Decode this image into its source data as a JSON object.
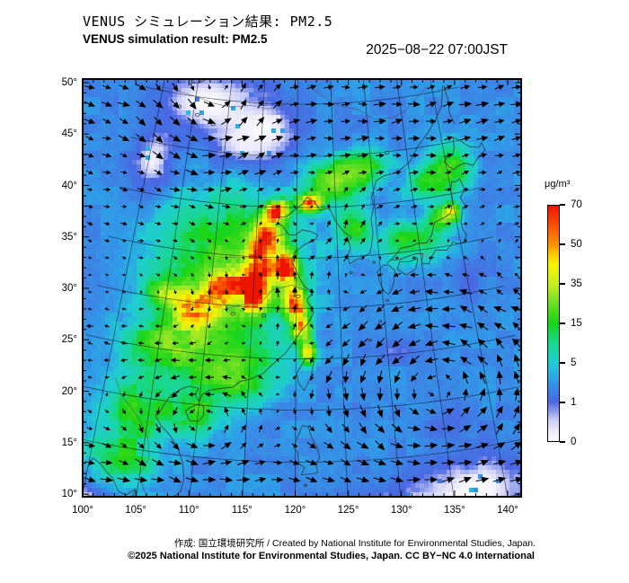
{
  "header": {
    "title_jp": "VENUS シミュレーション結果: PM2.5",
    "title_en": "VENUS simulation result: PM2.5",
    "timestamp": "2025−08−22 07:00JST"
  },
  "footer": {
    "credit": "作成: 国立環境研究所 / Created by National Institute for Environmental Studies, Japan.",
    "license": "©2025 National Institute for Environmental Studies, Japan. CC BY−NC 4.0 International"
  },
  "colorbar": {
    "unit": "μg/m³",
    "levels": [
      0,
      1,
      5,
      15,
      35,
      50,
      70
    ],
    "stops": [
      [
        0.0,
        "#ffffff"
      ],
      [
        0.045,
        "#eceafb"
      ],
      [
        0.09,
        "#c9cdf6"
      ],
      [
        0.167,
        "#4a66e2"
      ],
      [
        0.26,
        "#2f9fe8"
      ],
      [
        0.333,
        "#1fcdd2"
      ],
      [
        0.42,
        "#19d88a"
      ],
      [
        0.5,
        "#17d417"
      ],
      [
        0.6,
        "#7ce224"
      ],
      [
        0.667,
        "#c8ee1e"
      ],
      [
        0.75,
        "#f8f400"
      ],
      [
        0.8,
        "#fdc500"
      ],
      [
        0.833,
        "#ff9400"
      ],
      [
        0.9,
        "#fb5c00"
      ],
      [
        1.0,
        "#ee1500"
      ]
    ]
  },
  "axes": {
    "x_labels": [
      "100°",
      "105°",
      "110°",
      "115°",
      "120°",
      "125°",
      "130°",
      "135°",
      "140°"
    ],
    "y_labels": [
      "50°",
      "45°",
      "40°",
      "35°",
      "30°",
      "25°",
      "20°",
      "15°",
      "10°"
    ]
  },
  "chart_data": {
    "type": "heatmap",
    "title": "VENUS simulation result: PM2.5",
    "time": "2025-08-22 07:00 JST",
    "unit": "μg/m³",
    "projection": "lambert-conformal-like, East Asia",
    "lon_range": [
      100,
      141.3
    ],
    "lat_range": [
      9.7,
      52.5
    ],
    "levels": [
      0,
      1,
      5,
      15,
      35,
      50,
      70
    ],
    "background_level": 2.4,
    "pm25_blobs": [
      [
        117.6,
        39.6,
        1.3,
        0.9,
        62
      ],
      [
        121.7,
        40.4,
        1.4,
        0.8,
        55
      ],
      [
        116.3,
        36.8,
        1.6,
        1.8,
        68
      ],
      [
        115.2,
        32.6,
        1.6,
        2.6,
        72
      ],
      [
        118.6,
        33.8,
        1.3,
        1.6,
        58
      ],
      [
        119.6,
        30.6,
        1.1,
        1.6,
        62
      ],
      [
        120.6,
        28.3,
        0.9,
        1.4,
        52
      ],
      [
        121.3,
        25.8,
        0.7,
        1.1,
        35
      ],
      [
        111.5,
        31.5,
        2.6,
        2.2,
        40
      ],
      [
        108.3,
        29.6,
        2.2,
        1.8,
        34
      ],
      [
        104.8,
        30.6,
        1.6,
        1.1,
        26
      ],
      [
        112.0,
        34.0,
        7.0,
        5.5,
        18
      ],
      [
        106.5,
        25.5,
        4.0,
        3.0,
        18
      ],
      [
        113.5,
        23.0,
        3.5,
        2.2,
        20
      ],
      [
        109.5,
        19.5,
        2.5,
        2.0,
        14
      ],
      [
        104.0,
        19.0,
        3.0,
        3.0,
        12
      ],
      [
        103.0,
        14.0,
        3.0,
        2.5,
        10
      ],
      [
        127.0,
        38.0,
        2.0,
        1.8,
        14
      ],
      [
        124.5,
        42.5,
        3.0,
        1.6,
        20
      ],
      [
        128.5,
        43.5,
        3.0,
        1.5,
        16
      ],
      [
        134.0,
        36.0,
        3.5,
        1.6,
        13
      ],
      [
        138.5,
        37.8,
        1.7,
        1.1,
        18
      ],
      [
        139.6,
        38.4,
        0.9,
        0.7,
        24
      ],
      [
        137.5,
        41.5,
        2.5,
        1.4,
        14
      ],
      [
        140.5,
        42.5,
        2.5,
        1.8,
        16
      ],
      [
        112.0,
        26.5,
        6.0,
        2.0,
        8
      ]
    ],
    "clear_zones": [
      {
        "lon": 107.0,
        "lat": 49.5,
        "sx": 9.0,
        "sy": 3.5,
        "a": 1.0
      },
      {
        "lon": 113.0,
        "lat": 45.5,
        "sx": 4.5,
        "sy": 2.2,
        "a": 1.0
      },
      {
        "lon": 100.5,
        "lat": 43.0,
        "sx": 3.0,
        "sy": 3.5,
        "a": 0.95
      },
      {
        "lon": 115.0,
        "lat": 47.5,
        "sx": 6.0,
        "sy": 3.0,
        "a": 1.0
      },
      {
        "lon": 137.0,
        "lat": 11.0,
        "sx": 7.0,
        "sy": 4.0,
        "a": 1.0
      },
      {
        "lon": 128.0,
        "lat": 9.0,
        "sx": 6.0,
        "sy": 3.0,
        "a": 1.0
      },
      {
        "lon": 100.5,
        "lat": 9.5,
        "sx": 3.5,
        "sy": 2.5,
        "a": 1.0
      },
      {
        "lon": 131.0,
        "lat": 25.5,
        "sx": 3.0,
        "sy": 1.5,
        "a": 0.55
      },
      {
        "lon": 140.0,
        "lat": 31.0,
        "sx": 2.5,
        "sy": 2.0,
        "a": 0.5
      },
      {
        "lon": 136.0,
        "lat": 18.0,
        "sx": 3.0,
        "sy": 2.0,
        "a": 0.5
      }
    ],
    "wind": {
      "bands": [
        {
          "lat": 11.0,
          "w": 5.5,
          "u": 8.5
        },
        {
          "lat": 47.5,
          "w": 7.0,
          "u": 8.0
        },
        {
          "lat": 25.0,
          "w": 4.0,
          "u": -3.0
        },
        {
          "lat": 36.0,
          "w": 5.0,
          "u": 2.0
        }
      ],
      "vortices": [
        {
          "lon": 134.8,
          "lat": 21.5,
          "r": 8.0,
          "s": 11.0
        },
        {
          "lon": 110.5,
          "lat": 18.0,
          "r": 4.5,
          "s": 5.0
        },
        {
          "lon": 108.0,
          "lat": 49.0,
          "r": 6.0,
          "s": 5.0
        },
        {
          "lon": 123.0,
          "lat": 38.5,
          "r": 4.0,
          "s": 4.0
        },
        {
          "lon": 117.5,
          "lat": 31.0,
          "r": 6.0,
          "s": 3.0
        }
      ],
      "plume_southerly": {
        "lon": 117.5,
        "wlon": 4.5,
        "lat": 33.0,
        "wlat": 8.0,
        "v": 6.0
      }
    },
    "coastlines": {
      "mainland": [
        141.6,
        50.4,
        140.9,
        48.6,
        139.6,
        47.3,
        138.2,
        46.2,
        136.6,
        45.1,
        135.2,
        43.7,
        133.3,
        42.9,
        131.6,
        42.7,
        130.5,
        42.3,
        130.1,
        41.5,
        129.7,
        40.7,
        129.9,
        39.8,
        129.4,
        38.6,
        129.5,
        37.2,
        129.2,
        36.0,
        128.9,
        35.2,
        128.0,
        34.9,
        127.1,
        34.6,
        126.4,
        34.3,
        126.2,
        35.1,
        126.6,
        35.8,
        126.4,
        36.6,
        126.8,
        36.9,
        126.0,
        37.4,
        125.5,
        37.9,
        124.9,
        38.6,
        124.4,
        39.5,
        124.1,
        39.9,
        123.0,
        39.7,
        122.2,
        40.6,
        121.3,
        41.0,
        120.8,
        40.4,
        119.8,
        39.8,
        118.7,
        39.1,
        117.8,
        39.0,
        117.6,
        38.4,
        118.3,
        38.1,
        119.0,
        37.3,
        119.9,
        37.3,
        120.7,
        37.8,
        121.8,
        37.6,
        122.6,
        37.3,
        122.3,
        36.8,
        120.9,
        36.3,
        119.8,
        35.6,
        119.4,
        34.7,
        120.4,
        33.0,
        121.0,
        32.1,
        122.0,
        31.6,
        121.2,
        30.8,
        121.7,
        30.1,
        122.0,
        29.6,
        121.4,
        28.6,
        120.4,
        27.6,
        119.7,
        26.6,
        118.9,
        25.6,
        117.8,
        24.7,
        116.5,
        23.5,
        115.2,
        22.9,
        114.1,
        22.6,
        113.4,
        22.0,
        112.2,
        21.8,
        110.9,
        21.5,
        110.2,
        21.0,
        110.0,
        20.3,
        109.5,
        21.0,
        109.8,
        21.6,
        108.8,
        21.7,
        107.9,
        21.3,
        107.1,
        20.7,
        106.6,
        20.0,
        106.2,
        19.1,
        105.7,
        18.5,
        106.4,
        17.6,
        107.5,
        16.7,
        108.4,
        15.6,
        109.0,
        14.3,
        109.3,
        12.8,
        109.1,
        11.6,
        108.2,
        10.8,
        107.0,
        10.3,
        106.1,
        9.7,
        105.1,
        9.5,
        104.6,
        10.2,
        104.8,
        11.3,
        104.0,
        10.6,
        103.2,
        10.9,
        102.6,
        11.9,
        101.9,
        12.4,
        101.1,
        13.1,
        100.3,
        13.5,
        100.0,
        12.6
      ],
      "honshu": [
        130.9,
        34.1,
        131.4,
        34.4,
        132.4,
        34.3,
        133.3,
        34.5,
        134.5,
        34.7,
        135.3,
        34.6,
        135.0,
        33.7,
        135.8,
        33.5,
        136.3,
        34.2,
        136.9,
        34.8,
        137.3,
        34.7,
        138.2,
        34.6,
        138.8,
        35.0,
        139.1,
        35.3,
        139.7,
        35.0,
        140.4,
        35.1,
        140.9,
        35.7,
        140.6,
        36.3,
        140.5,
        37.0,
        141.0,
        38.3,
        141.5,
        38.4,
        141.0,
        39.5,
        141.8,
        40.1,
        141.4,
        41.3,
        140.8,
        41.1,
        140.3,
        41.2,
        140.0,
        40.4,
        139.9,
        39.1,
        139.4,
        38.1,
        138.5,
        37.8,
        137.3,
        37.5,
        137.0,
        37.0,
        136.7,
        36.3,
        135.9,
        35.6,
        135.0,
        35.7,
        133.9,
        35.5,
        132.7,
        35.4,
        131.9,
        34.7,
        130.9,
        34.1
      ],
      "kyushu": [
        130.4,
        33.9,
        129.6,
        33.3,
        129.8,
        32.3,
        130.2,
        31.3,
        130.7,
        31.0,
        131.1,
        31.4,
        131.5,
        32.2,
        131.7,
        33.3,
        131.0,
        33.9,
        130.4,
        33.9
      ],
      "shikoku": [
        132.0,
        33.4,
        133.0,
        32.7,
        134.2,
        33.2,
        134.6,
        34.2,
        133.6,
        34.0,
        132.4,
        34.1,
        132.0,
        33.4
      ],
      "hokkaido": [
        140.4,
        42.6,
        139.8,
        43.2,
        140.3,
        43.6,
        141.1,
        43.7,
        141.5,
        44.4,
        141.6,
        45.4,
        142.4,
        45.0,
        143.5,
        44.2,
        144.8,
        43.9,
        145.3,
        44.3,
        145.5,
        43.5,
        144.4,
        43.0,
        143.5,
        42.3,
        142.5,
        42.7,
        141.6,
        42.6,
        140.9,
        42.3,
        140.4,
        42.6
      ],
      "taiwan": [
        121.9,
        25.1,
        121.0,
        25.0,
        120.1,
        23.6,
        120.3,
        22.6,
        120.9,
        21.9,
        121.6,
        23.2,
        121.9,
        24.5,
        121.9,
        25.1
      ],
      "hainan": [
        110.0,
        20.1,
        109.2,
        19.7,
        108.7,
        19.3,
        109.2,
        18.4,
        110.1,
        18.4,
        110.6,
        19.1,
        110.5,
        19.9,
        110.0,
        20.1
      ],
      "luzon": [
        119.8,
        16.4,
        120.2,
        16.0,
        120.4,
        14.8,
        120.9,
        14.5,
        120.6,
        13.8,
        121.7,
        13.9,
        122.2,
        14.0,
        122.0,
        14.8,
        122.4,
        15.4,
        122.2,
        16.3,
        121.6,
        17.4,
        121.3,
        18.4,
        120.7,
        18.5,
        119.8,
        16.4
      ],
      "sakhalin": [
        141.8,
        50.4,
        142.0,
        49.0,
        141.8,
        47.8,
        142.2,
        46.6
      ]
    },
    "islands": [
      [
        126.5,
        33.4
      ],
      [
        129.3,
        34.3
      ],
      [
        130.5,
        30.4
      ],
      [
        129.5,
        28.4
      ],
      [
        128.2,
        26.6
      ],
      [
        121.0,
        12.8
      ],
      [
        122.3,
        11.6
      ],
      [
        124.2,
        11.2
      ],
      [
        125.2,
        9.9
      ],
      [
        118.5,
        9.9
      ],
      [
        119.5,
        10.6
      ]
    ],
    "rivers": [
      [
        121.8,
        31.6,
        119.5,
        32.3,
        117.2,
        31.8,
        115.8,
        30.3,
        113.8,
        30.2,
        112.3,
        29.7,
        111.2,
        30.5,
        109.5,
        30.8,
        108.3,
        29.8,
        107.2,
        29.6
      ],
      [
        118.8,
        37.5,
        116.9,
        36.9,
        115.0,
        34.9,
        112.8,
        34.8,
        110.9,
        34.7
      ],
      [
        121.5,
        51.8,
        124.0,
        50.6,
        126.4,
        49.7,
        128.8,
        49.3,
        131.2,
        48.2,
        133.8,
        48.2,
        135.4,
        48.6,
        137.6,
        49.8,
        139.4,
        50.6
      ],
      [
        101.0,
        21.5,
        101.9,
        19.9,
        103.1,
        18.9,
        104.3,
        17.7,
        105.3,
        16.2,
        105.7,
        14.4,
        105.0,
        12.6,
        105.8,
        11.0,
        106.4,
        10.0
      ],
      [
        100.0,
        50.4,
        102.5,
        50.2,
        105.0,
        50.0,
        107.5,
        49.6,
        110.3,
        49.4,
        113.0,
        49.7,
        115.8,
        49.5,
        118.0,
        49.9,
        119.6,
        50.6
      ]
    ],
    "lakes": {
      "baikal": [
        103.9,
        51.6,
        105.2,
        51.8,
        106.4,
        52.3,
        107.6,
        52.8,
        108.8,
        53.4,
        109.7,
        53.6,
        109.0,
        52.8,
        107.7,
        52.3,
        106.4,
        51.8,
        105.1,
        51.3,
        104.1,
        51.2,
        103.9,
        51.6
      ],
      "small": [
        [
          102.8,
          48.8
        ],
        [
          105.6,
          48.3
        ],
        [
          108.0,
          47.6
        ],
        [
          132.3,
          44.9
        ],
        [
          116.3,
          29.2
        ],
        [
          112.8,
          29.2
        ],
        [
          120.2,
          31.2
        ]
      ]
    }
  }
}
